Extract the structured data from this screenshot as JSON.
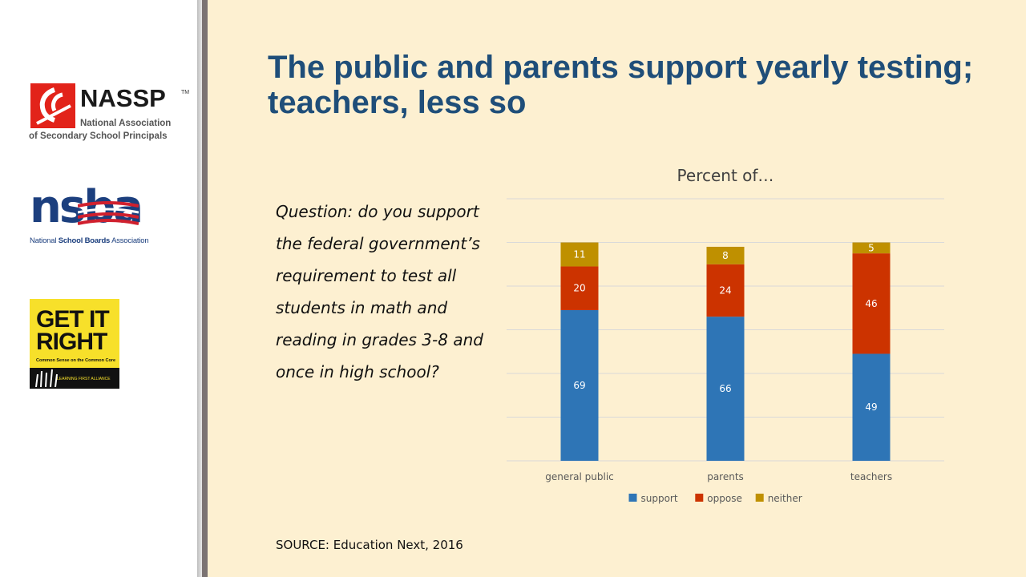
{
  "title": "The public and parents support yearly testing; teachers, less so",
  "question": "Question: do you support the federal government’s requirement to test all students in math and reading in grades 3-8 and once in high school?",
  "source": "SOURCE: Education Next, 2016",
  "logos": {
    "nassp": {
      "acronym": "NASSP",
      "trademark": "TM",
      "line1": "National Association",
      "line2": "of Secondary School Principals"
    },
    "nsba": {
      "wordmark": "nsba",
      "tag_prefix": "National ",
      "tag_bold": "School Boards",
      "tag_suffix": " Association"
    },
    "get_it_right": {
      "line1": "GET IT",
      "line2": "RIGHT",
      "subtitle": "Common Sense on the Common Core",
      "band_text": "LEARNING FIRST ALLIANCE"
    }
  },
  "colors": {
    "background": "#fdf0d1",
    "title": "#1f4e79",
    "support": "#2e75b6",
    "oppose": "#cc3300",
    "neither": "#bf9000"
  },
  "chart_data": {
    "type": "bar",
    "stacked": true,
    "title": "Percent of…",
    "categories": [
      "general public",
      "parents",
      "teachers"
    ],
    "series": [
      {
        "name": "support",
        "values": [
          69,
          66,
          49
        ],
        "color": "#2e75b6"
      },
      {
        "name": "oppose",
        "values": [
          20,
          24,
          46
        ],
        "color": "#cc3300"
      },
      {
        "name": "neither",
        "values": [
          11,
          8,
          5
        ],
        "color": "#bf9000"
      }
    ],
    "ylim": [
      0,
      120
    ],
    "grid": true,
    "legend": "bottom",
    "data_labels": true
  }
}
